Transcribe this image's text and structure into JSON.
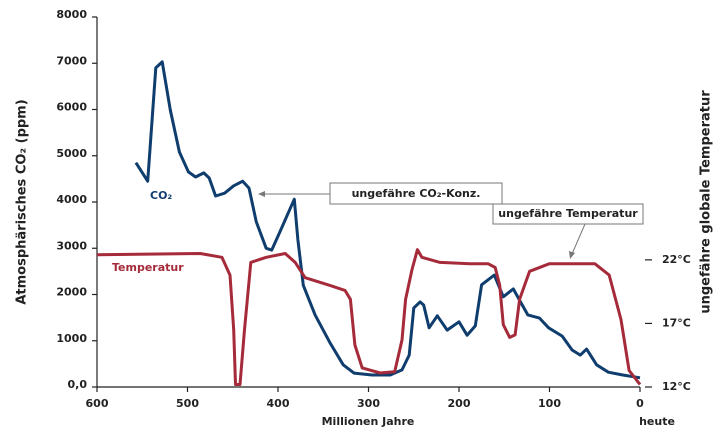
{
  "chart_data": {
    "type": "line",
    "y_label": "Atmosphärisches CO₂ (ppm)",
    "y2_label": "ungefähre globale Temperatur",
    "x_label": "Millionen Jahre",
    "annotations": [
      "ungefähre CO₂-Konz.",
      "ungefähre Temperatur",
      "heute"
    ],
    "xlim": [
      600,
      0
    ],
    "xticks": [
      600,
      500,
      400,
      300,
      200,
      100,
      0
    ],
    "ylim": [
      0,
      8000
    ],
    "yticks": [
      {
        "value": 0,
        "label": "0,0"
      },
      1000,
      2000,
      3000,
      4000,
      5000,
      6000,
      7000,
      8000
    ],
    "y2lim": [
      12,
      41.1
    ],
    "y2ticks": [
      {
        "value": 12,
        "label": "12°C"
      },
      {
        "value": 17,
        "label": "17°C"
      },
      {
        "value": 22,
        "label": "22°C"
      }
    ],
    "series": [
      {
        "name": "CO₂",
        "color": "#0f3d6e",
        "x": [
          557,
          544,
          535,
          528,
          519,
          509,
          499,
          491,
          482,
          476,
          469,
          459,
          449,
          439,
          432,
          424,
          413,
          407,
          398,
          382,
          378,
          372,
          359,
          343,
          328,
          316,
          296,
          276,
          263,
          255,
          250,
          243,
          239,
          233,
          224,
          213,
          208,
          200,
          191,
          182,
          175,
          161,
          151,
          140,
          132,
          124,
          111,
          101,
          86,
          75,
          66,
          59,
          48,
          35,
          19,
          0
        ],
        "values": [
          4850,
          4450,
          6900,
          7030,
          5990,
          5080,
          4650,
          4540,
          4630,
          4520,
          4130,
          4190,
          4350,
          4450,
          4300,
          3570,
          3000,
          2960,
          3350,
          4060,
          3180,
          2200,
          1560,
          970,
          480,
          300,
          260,
          260,
          370,
          690,
          1710,
          1840,
          1770,
          1280,
          1540,
          1230,
          1300,
          1410,
          1120,
          1320,
          2210,
          2420,
          1950,
          2120,
          1840,
          1560,
          1490,
          1280,
          1100,
          800,
          690,
          820,
          480,
          320,
          260,
          200
        ]
      },
      {
        "name": "Temperatur",
        "color": "#a52a3a",
        "axis": "y2",
        "x": [
          600,
          486,
          462,
          453,
          449,
          447,
          442,
          437,
          430,
          413,
          392,
          381,
          370,
          343,
          326,
          320,
          315,
          307,
          287,
          271,
          263,
          259,
          252,
          246,
          241,
          221,
          188,
          168,
          160,
          155,
          151,
          144,
          138,
          133,
          122,
          100,
          50,
          34,
          21,
          12,
          0
        ],
        "values": [
          22.4,
          22.5,
          22.2,
          20.8,
          16.5,
          12.2,
          12.2,
          16.5,
          21.8,
          22.2,
          22.5,
          21.8,
          20.6,
          20.0,
          19.6,
          18.9,
          15.3,
          13.5,
          13.1,
          13.2,
          15.7,
          18.9,
          21.2,
          22.8,
          22.2,
          21.8,
          21.7,
          21.7,
          21.4,
          20.0,
          16.9,
          15.9,
          16.1,
          18.9,
          21.1,
          21.7,
          21.7,
          20.8,
          17.3,
          13.3,
          12.2
        ]
      }
    ]
  }
}
